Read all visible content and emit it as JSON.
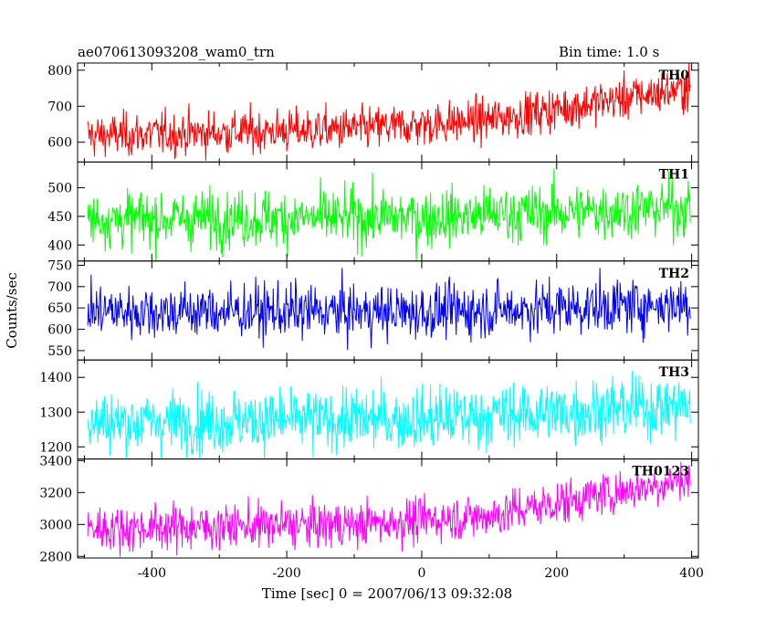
{
  "header": {
    "obs_id": "ae070613093208_wam0_trn",
    "bin_time": "Bin time: 1.0 s"
  },
  "axes": {
    "xlabel": "Time [sec] 0 = 2007/06/13 09:32:08",
    "ylabel": "Counts/sec"
  },
  "chart_data": [
    {
      "type": "line",
      "name": "TH0",
      "color": "#ff0000",
      "xlim": [
        -510,
        410
      ],
      "ylim": [
        545,
        820
      ],
      "yticks": [
        600,
        700,
        800
      ],
      "x_range": [
        -495,
        398
      ],
      "trend": [
        [
          -495,
          618
        ],
        [
          -100,
          636
        ],
        [
          100,
          662
        ],
        [
          398,
          752
        ]
      ],
      "noise_sd": 30
    },
    {
      "type": "line",
      "name": "TH1",
      "color": "#00ff00",
      "xlim": [
        -510,
        410
      ],
      "ylim": [
        372,
        545
      ],
      "yticks": [
        400,
        450,
        500
      ],
      "x_range": [
        -495,
        398
      ],
      "trend": [
        [
          -495,
          445
        ],
        [
          0,
          448
        ],
        [
          398,
          466
        ]
      ],
      "noise_sd": 25
    },
    {
      "type": "line",
      "name": "TH2",
      "color": "#0000ff",
      "xlim": [
        -510,
        410
      ],
      "ylim": [
        528,
        760
      ],
      "yticks": [
        550,
        600,
        650,
        700,
        750
      ],
      "x_range": [
        -495,
        398
      ],
      "trend": [
        [
          -495,
          643
        ],
        [
          0,
          640
        ],
        [
          398,
          660
        ]
      ],
      "noise_sd": 32
    },
    {
      "type": "line",
      "name": "TH3",
      "color": "#00ffff",
      "xlim": [
        -510,
        410
      ],
      "ylim": [
        1165,
        1450
      ],
      "yticks": [
        1200,
        1300,
        1400
      ],
      "x_range": [
        -495,
        398
      ],
      "trend": [
        [
          -495,
          1270
        ],
        [
          0,
          1280
        ],
        [
          398,
          1320
        ]
      ],
      "noise_sd": 45
    },
    {
      "type": "line",
      "name": "TH0123",
      "color": "#ff00ff",
      "xlim": [
        -510,
        410
      ],
      "ylim": [
        2790,
        3410
      ],
      "yticks": [
        2800,
        3000,
        3200,
        3400
      ],
      "x_range": [
        -495,
        398
      ],
      "trend": [
        [
          -495,
          2975
        ],
        [
          -100,
          3000
        ],
        [
          100,
          3055
        ],
        [
          398,
          3290
        ]
      ],
      "noise_sd": 70
    }
  ],
  "xticks": [
    -400,
    -200,
    0,
    200,
    400
  ]
}
